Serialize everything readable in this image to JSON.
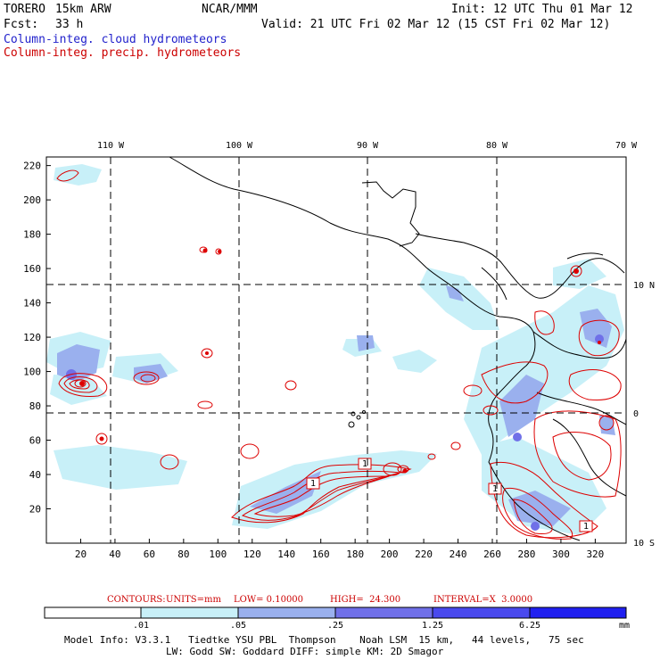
{
  "header": {
    "model": "TORERO",
    "resolution": "15km ARW",
    "institution": "NCAR/MMM",
    "init": "Init: 12 UTC Thu 01 Mar 12",
    "fcst_label": "Fcst:",
    "fcst_hours": "33 h",
    "valid": "Valid: 21 UTC Fri 02 Mar 12 (15 CST Fri 02 Mar 12)",
    "field1": "Column-integ. cloud hydrometeors",
    "field2": "Column-integ. precip. hydrometeors"
  },
  "map": {
    "top_lon_labels": [
      "110 W",
      "100 W",
      "90 W",
      "80 W",
      "70 W"
    ],
    "right_lat_labels": [
      "10 N",
      "0",
      "10 S"
    ],
    "y_ticks": [
      "220",
      "200",
      "180",
      "160",
      "140",
      "120",
      "100",
      "80",
      "60",
      "40",
      "20"
    ],
    "x_ticks": [
      "20",
      "40",
      "60",
      "80",
      "100",
      "120",
      "140",
      "160",
      "180",
      "200",
      "220",
      "240",
      "260",
      "280",
      "300",
      "320"
    ],
    "contour_labels": [
      "1",
      "1",
      "1",
      "1"
    ]
  },
  "contours_line": {
    "contours": "CONTOURS:",
    "units": "UNITS=mm",
    "low": "LOW= 0.10000",
    "high": "HIGH=  24.300",
    "interval": "INTERVAL=X  3.0000"
  },
  "colorbar": {
    "labels": [
      ".01",
      ".05",
      ".25",
      "1.25",
      "6.25"
    ],
    "unit": "mm",
    "colors": [
      "#ffffff",
      "#c8f0f8",
      "#9ab0ee",
      "#7070e8",
      "#4a4aee",
      "#2020f0"
    ]
  },
  "model_info": {
    "line1": "Model Info: V3.3.1   Tiedtke YSU PBL  Thompson    Noah LSM  15 km,   44 levels,   75 sec",
    "line2": "LW: Godd SW: Goddard DIFF: simple KM: 2D Smagor"
  }
}
